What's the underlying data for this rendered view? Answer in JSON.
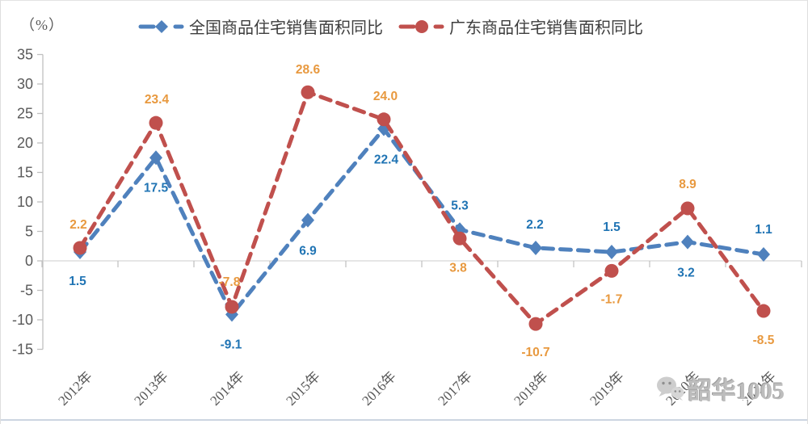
{
  "chart_data": {
    "type": "line",
    "title": "",
    "y_unit": "（%）",
    "categories": [
      "2012年",
      "2013年",
      "2014年",
      "2015年",
      "2016年",
      "2017年",
      "2018年",
      "2019年",
      "2020年",
      "2021年"
    ],
    "series": [
      {
        "name": "全国商品住宅销售面积同比",
        "color": "#4F81BD",
        "label_color": "#2074B4",
        "marker": "diamond",
        "line_style": "dashed",
        "values": [
          1.5,
          17.5,
          -9.1,
          6.9,
          22.4,
          5.3,
          2.2,
          1.5,
          3.2,
          1.1
        ],
        "label_offsets": [
          [
            -3,
            41
          ],
          [
            0,
            42
          ],
          [
            -1,
            42
          ],
          [
            0,
            43
          ],
          [
            3,
            43
          ],
          [
            0,
            -25
          ],
          [
            -1,
            -24
          ],
          [
            0,
            -26
          ],
          [
            -2,
            43
          ],
          [
            0,
            -26
          ]
        ]
      },
      {
        "name": "广东商品住宅销售面积同比",
        "color": "#C0504D",
        "label_color": "#E8993F",
        "marker": "circle",
        "line_style": "dashed",
        "values": [
          2.2,
          23.4,
          -7.8,
          28.6,
          24.0,
          3.8,
          -10.7,
          -1.7,
          8.9,
          -8.5
        ],
        "label_offsets": [
          [
            -2,
            -24
          ],
          [
            1,
            -24
          ],
          [
            -3,
            -26
          ],
          [
            0,
            -23
          ],
          [
            2,
            -24
          ],
          [
            -2,
            41
          ],
          [
            0,
            40
          ],
          [
            0,
            40
          ],
          [
            0,
            -25
          ],
          [
            0,
            41
          ]
        ]
      }
    ],
    "ylim": [
      -15,
      35
    ],
    "ytick_step": 5,
    "yticks": [
      35,
      30,
      25,
      20,
      15,
      10,
      5,
      0,
      -5,
      -10,
      -15
    ],
    "grid": false,
    "legend_position": "top",
    "axis_color": "#bfbfbf",
    "zero_line_color": "#d6d6d6",
    "tick_label_color": "#595959"
  },
  "watermark": {
    "icon": "wechat-icon",
    "text": "韶华1005"
  }
}
